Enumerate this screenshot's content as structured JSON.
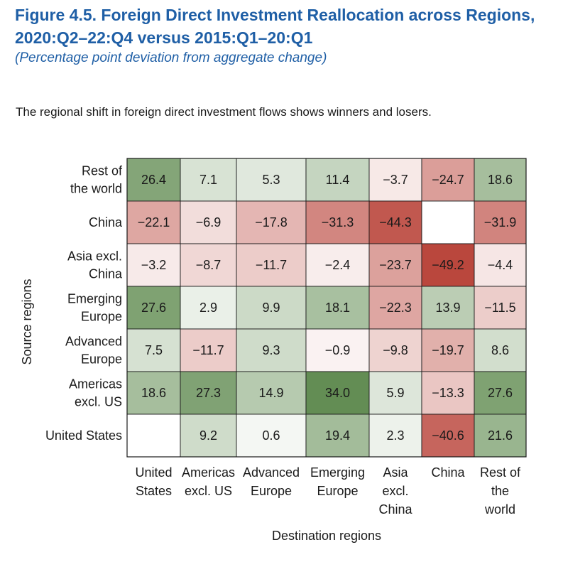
{
  "header": {
    "title": "Figure 4.5. Foreign Direct Investment Reallocation across Regions, 2020:Q2–22:Q4 versus 2015:Q1–20:Q1",
    "subtitle": "(Percentage point deviation from aggregate change)",
    "description": "The regional shift in foreign direct investment flows shows winners and losers."
  },
  "colors": {
    "positive": "#5f8a4f",
    "negative": "#b9443a",
    "neutral": "#ffffff",
    "grid": "#1a1a1a"
  },
  "chart_data": {
    "type": "heatmap",
    "title": "Foreign Direct Investment Reallocation across Regions, 2020:Q2–22:Q4 versus 2015:Q1–20:Q1",
    "xlabel": "Destination regions",
    "ylabel": "Source regions",
    "color_range": [
      -50,
      35
    ],
    "columns": [
      {
        "key": "us",
        "label": [
          "United",
          "States"
        ]
      },
      {
        "key": "americas",
        "label": [
          "Americas",
          "excl. US"
        ]
      },
      {
        "key": "adv_europe",
        "label": [
          "Advanced",
          "Europe"
        ]
      },
      {
        "key": "em_europe",
        "label": [
          "Emerging",
          "Europe"
        ]
      },
      {
        "key": "asia",
        "label": [
          "Asia",
          "excl.",
          "China"
        ]
      },
      {
        "key": "china",
        "label": [
          "China"
        ]
      },
      {
        "key": "row",
        "label": [
          "Rest of",
          "the",
          "world"
        ]
      }
    ],
    "rows": [
      {
        "label": [
          "Rest of",
          "the world"
        ],
        "values": [
          26.4,
          7.1,
          5.3,
          11.4,
          -3.7,
          -24.7,
          18.6
        ]
      },
      {
        "label": [
          "China"
        ],
        "values": [
          -22.1,
          -6.9,
          -17.8,
          -31.3,
          -44.3,
          null,
          -31.9
        ]
      },
      {
        "label": [
          "Asia excl.",
          "China"
        ],
        "values": [
          -3.2,
          -8.7,
          -11.7,
          -2.4,
          -23.7,
          -49.2,
          -4.4
        ]
      },
      {
        "label": [
          "Emerging",
          "Europe"
        ],
        "values": [
          27.6,
          2.9,
          9.9,
          18.1,
          -22.3,
          13.9,
          -11.5
        ]
      },
      {
        "label": [
          "Advanced",
          "Europe"
        ],
        "values": [
          7.5,
          -11.7,
          9.3,
          -0.9,
          -9.8,
          -19.7,
          8.6
        ]
      },
      {
        "label": [
          "Americas",
          "excl. US"
        ],
        "values": [
          18.6,
          27.3,
          14.9,
          34.0,
          5.9,
          -13.3,
          27.6
        ]
      },
      {
        "label": [
          "United States"
        ],
        "values": [
          null,
          9.2,
          0.6,
          19.4,
          2.3,
          -40.6,
          21.6
        ]
      }
    ]
  }
}
